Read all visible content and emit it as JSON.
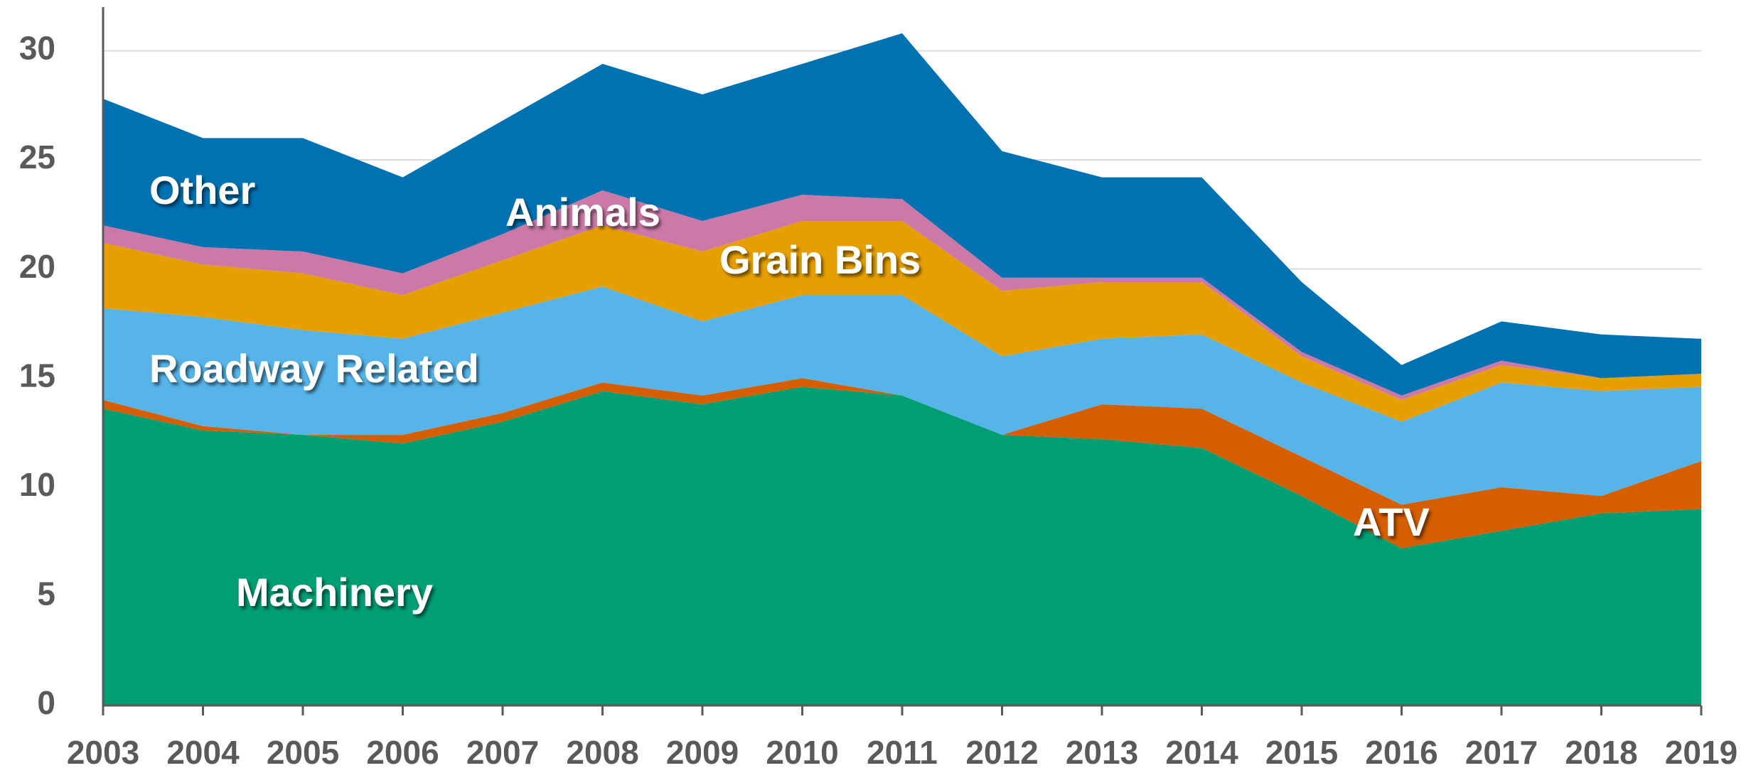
{
  "chart_data": {
    "type": "stacked-area",
    "categories": [
      "2003",
      "2004",
      "2005",
      "2006",
      "2007",
      "2008",
      "2009",
      "2010",
      "2011",
      "2012",
      "2013",
      "2014",
      "2015",
      "2016",
      "2017",
      "2018",
      "2019"
    ],
    "series": [
      {
        "name": "Machinery",
        "color": "#009e73",
        "values": [
          13.6,
          12.6,
          12.4,
          12.0,
          13.0,
          14.4,
          13.8,
          14.6,
          14.2,
          12.4,
          12.2,
          11.8,
          9.6,
          7.2,
          8.0,
          8.8,
          9.0
        ]
      },
      {
        "name": "ATV",
        "color": "#d55e00",
        "values": [
          0.4,
          0.2,
          0,
          0.4,
          0.4,
          0.4,
          0.4,
          0.4,
          0,
          0,
          1.6,
          1.8,
          1.8,
          2.0,
          2.0,
          0.8,
          2.2
        ]
      },
      {
        "name": "Roadway Related",
        "color": "#56b4e9",
        "values": [
          4.2,
          5.0,
          4.8,
          4.4,
          4.6,
          4.4,
          3.4,
          3.8,
          4.6,
          3.6,
          3.0,
          3.4,
          3.4,
          3.8,
          4.8,
          4.8,
          3.4
        ]
      },
      {
        "name": "Grain Bins",
        "color": "#e69f00",
        "values": [
          3.0,
          2.4,
          2.6,
          2.0,
          2.4,
          2.8,
          3.2,
          3.4,
          3.4,
          3.0,
          2.6,
          2.4,
          1.2,
          1.0,
          0.8,
          0.6,
          0.6
        ]
      },
      {
        "name": "Animals",
        "color": "#cc79a7",
        "values": [
          0.8,
          0.8,
          1.0,
          1.0,
          1.2,
          1.6,
          1.4,
          1.2,
          1.0,
          0.6,
          0.2,
          0.2,
          0.2,
          0.2,
          0.2,
          0,
          0
        ]
      },
      {
        "name": "Other",
        "color": "#0072b2",
        "values": [
          5.8,
          5.0,
          5.2,
          4.4,
          5.2,
          5.8,
          5.8,
          6.0,
          7.6,
          5.8,
          4.6,
          4.6,
          3.2,
          1.4,
          1.8,
          2.0,
          1.6
        ]
      }
    ],
    "ylim": [
      0,
      32
    ],
    "yticks": [
      0,
      5,
      10,
      15,
      20,
      25,
      30
    ],
    "grid": true
  }
}
